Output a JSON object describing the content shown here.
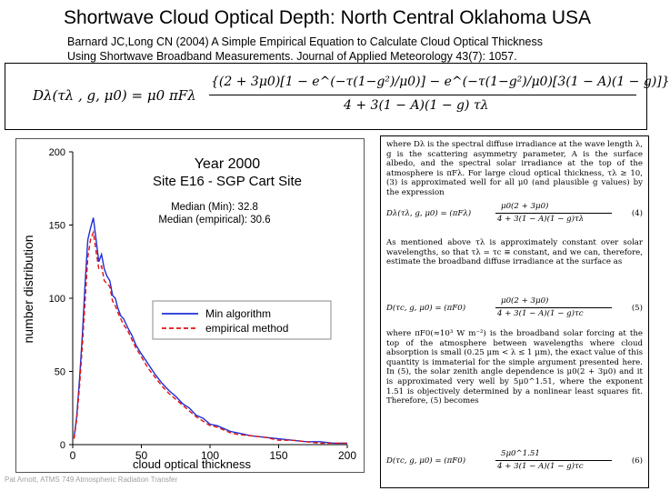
{
  "title": "Shortwave Cloud Optical Depth:  North Central Oklahoma USA",
  "citation": {
    "line1": "Barnard JC,Long CN (2004) A Simple Empirical Equation to Calculate Cloud Optical Thickness",
    "line2": "Using Shortwave Broadband Measurements. Journal of Applied Meteorology 43(7): 1057."
  },
  "equation": {
    "lhs": "Dλ(τλ , g, μ0)  =  μ0 πFλ",
    "numerator": "{(2 + 3μ0)[1 − e^(−τ(1−g²)/μ0)] − e^(−τ(1−g²)/μ0)[3(1 − A)(1 − g)]}",
    "denominator": "4 + 3(1 − A)(1 − g) τλ"
  },
  "chart_data": {
    "type": "line",
    "title": "Year 2000",
    "subtitle": "Site E16 - SGP Cart Site",
    "annotations": [
      "Median (Min): 32.8",
      "Median (empirical): 30.6"
    ],
    "xlabel": "cloud optical thickness",
    "ylabel": "number distribution",
    "xlim": [
      0,
      200
    ],
    "ylim": [
      0,
      200
    ],
    "xticks": [
      "0",
      "50",
      "100",
      "150",
      "200"
    ],
    "yticks": [
      "0",
      "50",
      "100",
      "150",
      "200"
    ],
    "legend_position": "center-right",
    "series": [
      {
        "name": "Min algorithm",
        "color": "#1f2fd6",
        "style": "solid",
        "x": [
          1,
          3,
          5,
          7,
          9,
          11,
          13,
          15,
          17,
          19,
          21,
          23,
          25,
          27,
          29,
          31,
          33,
          35,
          37,
          40,
          43,
          46,
          50,
          55,
          60,
          65,
          70,
          75,
          80,
          85,
          90,
          95,
          100,
          105,
          110,
          115,
          120,
          130,
          140,
          150,
          160,
          170,
          180,
          190,
          200
        ],
        "y": [
          5,
          20,
          45,
          75,
          110,
          140,
          148,
          155,
          140,
          125,
          130,
          120,
          115,
          112,
          102,
          100,
          93,
          88,
          86,
          80,
          75,
          68,
          62,
          55,
          48,
          42,
          37,
          33,
          28,
          25,
          20,
          18,
          14,
          13,
          11,
          9,
          8,
          6,
          5,
          4,
          3,
          2,
          2,
          1,
          1
        ]
      },
      {
        "name": "empirical method",
        "color": "#e01010",
        "style": "dashed",
        "x": [
          1,
          3,
          5,
          7,
          9,
          11,
          13,
          15,
          17,
          19,
          21,
          23,
          25,
          27,
          29,
          31,
          33,
          35,
          37,
          40,
          43,
          46,
          50,
          55,
          60,
          65,
          70,
          75,
          80,
          85,
          90,
          95,
          100,
          105,
          110,
          115,
          120,
          130,
          140,
          150,
          160,
          170,
          180,
          190,
          200
        ],
        "y": [
          4,
          18,
          40,
          68,
          98,
          128,
          140,
          145,
          132,
          120,
          122,
          112,
          110,
          108,
          98,
          95,
          90,
          86,
          82,
          78,
          72,
          66,
          60,
          52,
          46,
          40,
          35,
          31,
          27,
          23,
          19,
          16,
          13,
          12,
          10,
          8,
          7,
          6,
          5,
          3,
          3,
          2,
          1,
          1,
          1
        ]
      }
    ]
  },
  "footer": "Pat Arnott, ATMS 749 Atmospheric Radiation Transfer",
  "paper": {
    "para1": "where Dλ is the spectral diffuse irradiance at the wave length λ, g is the scattering asymmetry parameter, A is the surface albedo, and the spectral solar irradiance at the top of the atmosphere is πFλ. For large cloud optical thickness, τλ ≥ 10, (3) is approximated well for all μ0 (and plausible g values) by the expression",
    "eq4": {
      "lhs": "Dλ(τλ, g, μ0) = (πFλ)",
      "num": "μ0(2 + 3μ0)",
      "den": "4 + 3(1 − A)(1 − g)τλ",
      "no": "(4)"
    },
    "para2": "As mentioned above τλ is approximately constant over solar wavelengths, so that τλ = τc ≡ constant, and we can, therefore, estimate the broadband diffuse irradiance at the surface as",
    "eq5": {
      "lhs": "D(τc, g, μ0) = (πF0)",
      "num": "μ0(2 + 3μ0)",
      "den": "4 + 3(1 − A)(1 − g)τc",
      "no": "(5)"
    },
    "para3": "where πF0(≈10³ W m⁻²) is the broadband solar forcing at the top of the atmosphere between wavelengths where cloud absorption is small (0.25 μm < λ ≤ 1 μm), the exact value of this quantity is immaterial for the simple argument presented here. In (5), the solar zenith angle dependence is μ0(2 + 3μ0) and it is approximated very well by 5μ0^1.51, where the exponent 1.51 is objectively determined by a nonlinear least squares fit. Therefore, (5) becomes",
    "eq6": {
      "lhs": "D(τc, g, μ0) = (πF0)",
      "num": "5μ0^1.51",
      "den": "4 + 3(1 − A)(1 − g)τc",
      "no": "(6)"
    }
  }
}
